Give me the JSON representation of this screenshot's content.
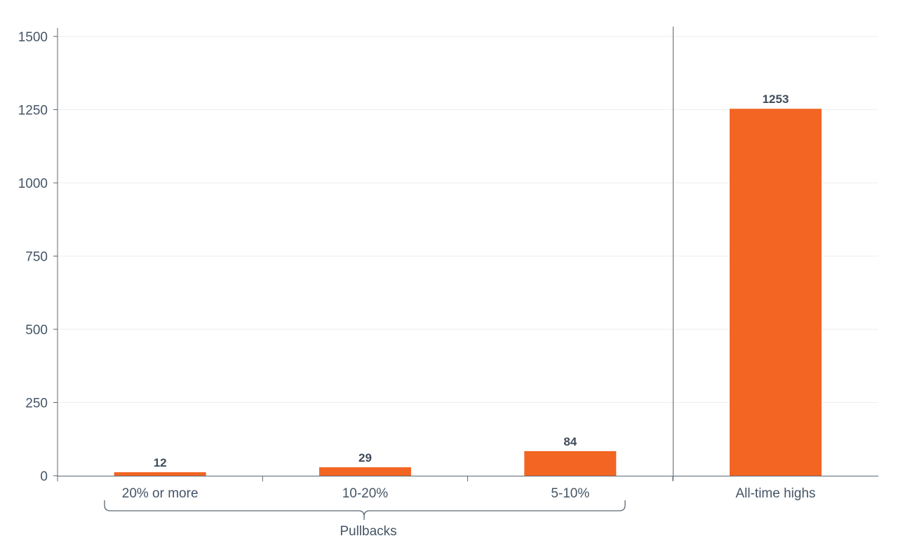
{
  "chart_data": {
    "type": "bar",
    "categories": [
      "20% or more",
      "10-20%",
      "5-10%",
      "All-time highs"
    ],
    "values": [
      12,
      29,
      84,
      1253
    ],
    "title": "",
    "xlabel": "",
    "ylabel": "",
    "ylim": [
      0,
      1500
    ],
    "yticks": [
      0,
      250,
      500,
      750,
      1000,
      1250,
      1500
    ],
    "grid": true,
    "legend": "none",
    "group_label": "Pullbacks",
    "bar_color": "#f26522"
  }
}
